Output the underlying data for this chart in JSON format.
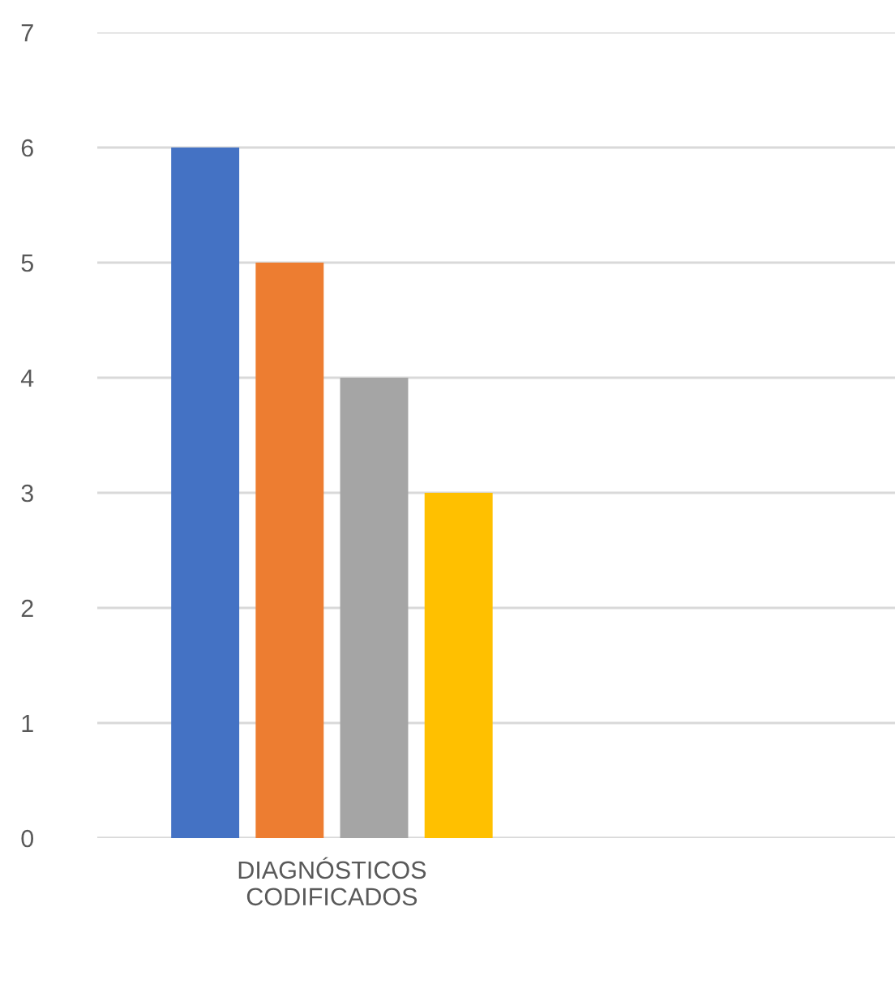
{
  "chart_data": {
    "type": "bar",
    "categories": [
      "DIAGNÓSTICOS\nCODIFICADOS"
    ],
    "series": [
      {
        "color": "#4472c4",
        "values": [
          6
        ]
      },
      {
        "color": "#ed7d31",
        "values": [
          5
        ]
      },
      {
        "color": "#a5a5a5",
        "values": [
          4
        ]
      },
      {
        "color": "#ffc000",
        "values": [
          3
        ]
      }
    ],
    "ylim": [
      0,
      7
    ],
    "yticks": [
      0,
      1,
      2,
      3,
      4,
      5,
      6,
      7
    ],
    "grid": "y",
    "legend": false
  }
}
